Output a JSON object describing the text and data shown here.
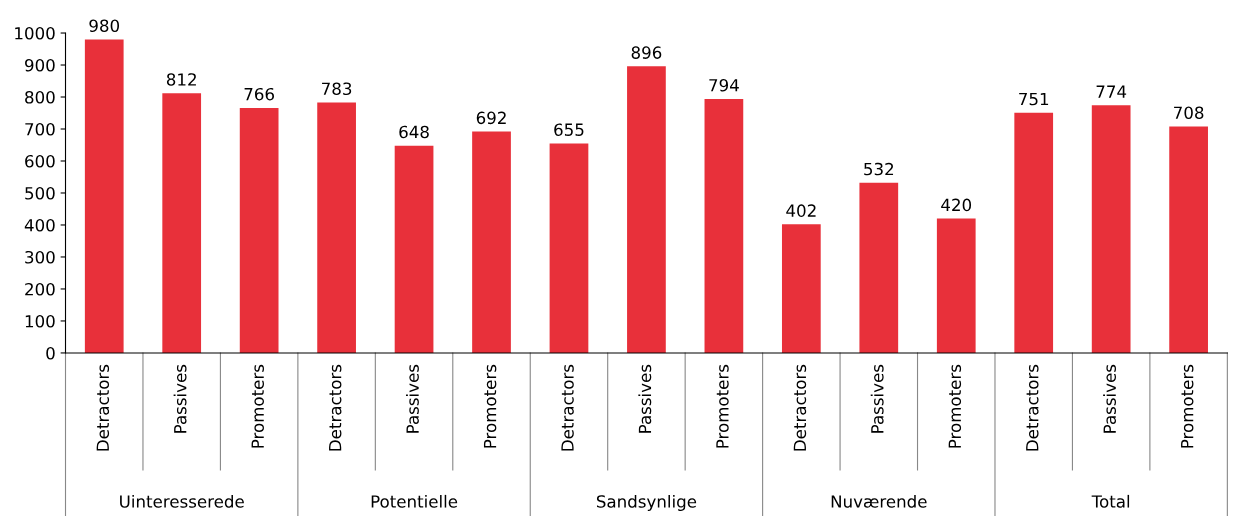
{
  "chart_data": {
    "type": "bar",
    "categories": [
      "Detractors",
      "Passives",
      "Promoters",
      "Detractors",
      "Passives",
      "Promoters",
      "Detractors",
      "Passives",
      "Promoters",
      "Detractors",
      "Passives",
      "Promoters",
      "Detractors",
      "Passives",
      "Promoters"
    ],
    "values": [
      980,
      812,
      766,
      783,
      648,
      692,
      655,
      896,
      794,
      402,
      532,
      420,
      751,
      774,
      708
    ],
    "color": "#e8303a",
    "annotations": [
      "Uinteresserede",
      "Potentielle",
      "Sandsynlige",
      "Nuværende",
      "Total"
    ],
    "ylim": [
      0,
      1000
    ],
    "yticks": [
      0,
      100,
      200,
      300,
      400,
      500,
      600,
      700,
      800,
      900,
      1000
    ],
    "data_labels": true
  }
}
